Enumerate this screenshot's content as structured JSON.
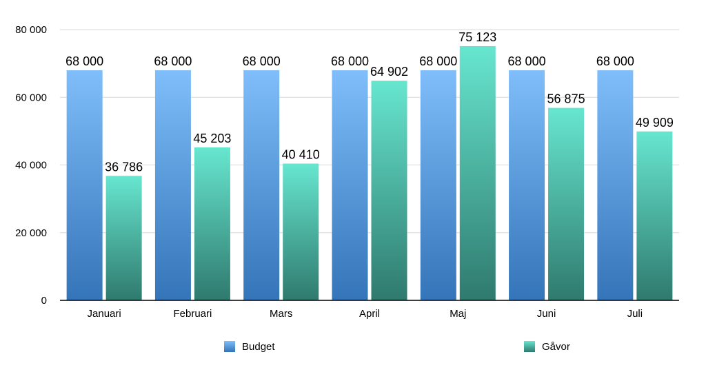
{
  "chart_data": {
    "type": "bar",
    "categories": [
      "Januari",
      "Februari",
      "Mars",
      "April",
      "Maj",
      "Juni",
      "Juli"
    ],
    "series": [
      {
        "name": "Budget",
        "values": [
          68000,
          68000,
          68000,
          68000,
          68000,
          68000,
          68000
        ]
      },
      {
        "name": "Gåvor",
        "values": [
          36786,
          45203,
          40410,
          64902,
          75123,
          56875,
          49909
        ]
      }
    ],
    "data_labels": [
      [
        "68 000",
        "68 000",
        "68 000",
        "68 000",
        "68 000",
        "68 000",
        "68 000"
      ],
      [
        "36 786",
        "45 203",
        "40 410",
        "64 902",
        "75 123",
        "56 875",
        "49 909"
      ]
    ],
    "y_ticks": [
      0,
      20000,
      40000,
      60000,
      80000
    ],
    "y_tick_labels": [
      "0",
      "20 000",
      "40 000",
      "60 000",
      "80 000"
    ],
    "ylim": [
      0,
      80000
    ],
    "grid": true,
    "legend": "bottom",
    "title": "",
    "xlabel": "",
    "ylabel": "",
    "colors": {
      "budget_top": "#7fbefa",
      "budget_bottom": "#3474b8",
      "gavor_top": "#67e6cf",
      "gavor_bottom": "#2f7a6e",
      "grid": "#d8d8d8",
      "axis": "#000000"
    }
  }
}
